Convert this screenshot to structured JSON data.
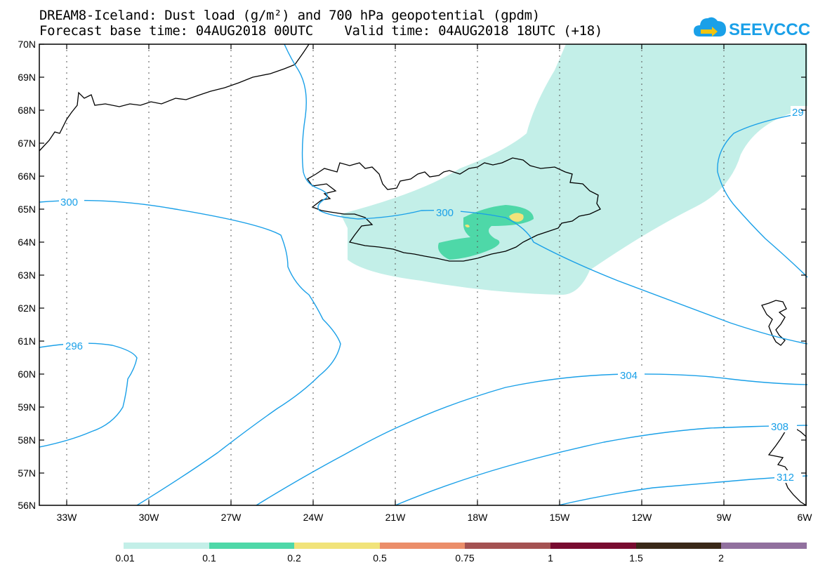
{
  "header": {
    "title_line1": "DREAM8-Iceland: Dust load (g/m²) and 700 hPa geopotential (gpdm)",
    "title_line2": "Forecast base time: 04AUG2018 00UTC    Valid time: 04AUG2018 18UTC (+18)",
    "logo_text": "SEEVCCC",
    "logo_icon": "cloud-arrow-icon"
  },
  "map": {
    "lat_labels": [
      "70N",
      "69N",
      "68N",
      "67N",
      "66N",
      "65N",
      "64N",
      "63N",
      "62N",
      "61N",
      "60N",
      "59N",
      "58N",
      "57N",
      "56N"
    ],
    "lon_labels": [
      "33W",
      "30W",
      "27W",
      "24W",
      "21W",
      "18W",
      "15W",
      "12W",
      "9W",
      "6W"
    ],
    "contour_labels": [
      "300",
      "300",
      "296",
      "304",
      "308",
      "312",
      "29"
    ],
    "contour_color": "#1aa0e8"
  },
  "colorbar": {
    "ticks": [
      "0.01",
      "0.1",
      "0.2",
      "0.5",
      "0.75",
      "1",
      "1.5",
      "2"
    ],
    "colors": [
      "#c3efe8",
      "#4ed8a8",
      "#f1e37a",
      "#eb8e6a",
      "#a45252",
      "#780b30",
      "#3a2818",
      "#91709e"
    ]
  }
}
